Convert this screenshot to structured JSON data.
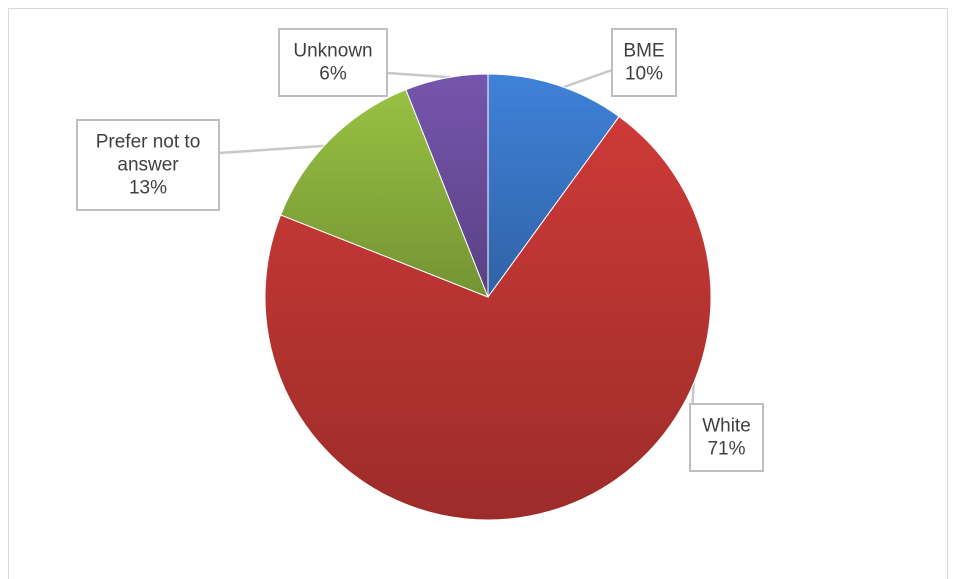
{
  "chart_data": {
    "type": "pie",
    "title": "",
    "slices": [
      {
        "label": "BME",
        "value": 10,
        "percent_label": "10%",
        "color": "#3A78C9"
      },
      {
        "label": "White",
        "value": 71,
        "percent_label": "71%",
        "color": "#BE3633"
      },
      {
        "label": "Prefer not to answer",
        "value": 13,
        "percent_label": "13%",
        "color": "#8DB33E"
      },
      {
        "label": "Unknown",
        "value": 6,
        "percent_label": "6%",
        "color": "#6D4FA0"
      }
    ],
    "legend": "none",
    "data_labels": "callouts"
  }
}
